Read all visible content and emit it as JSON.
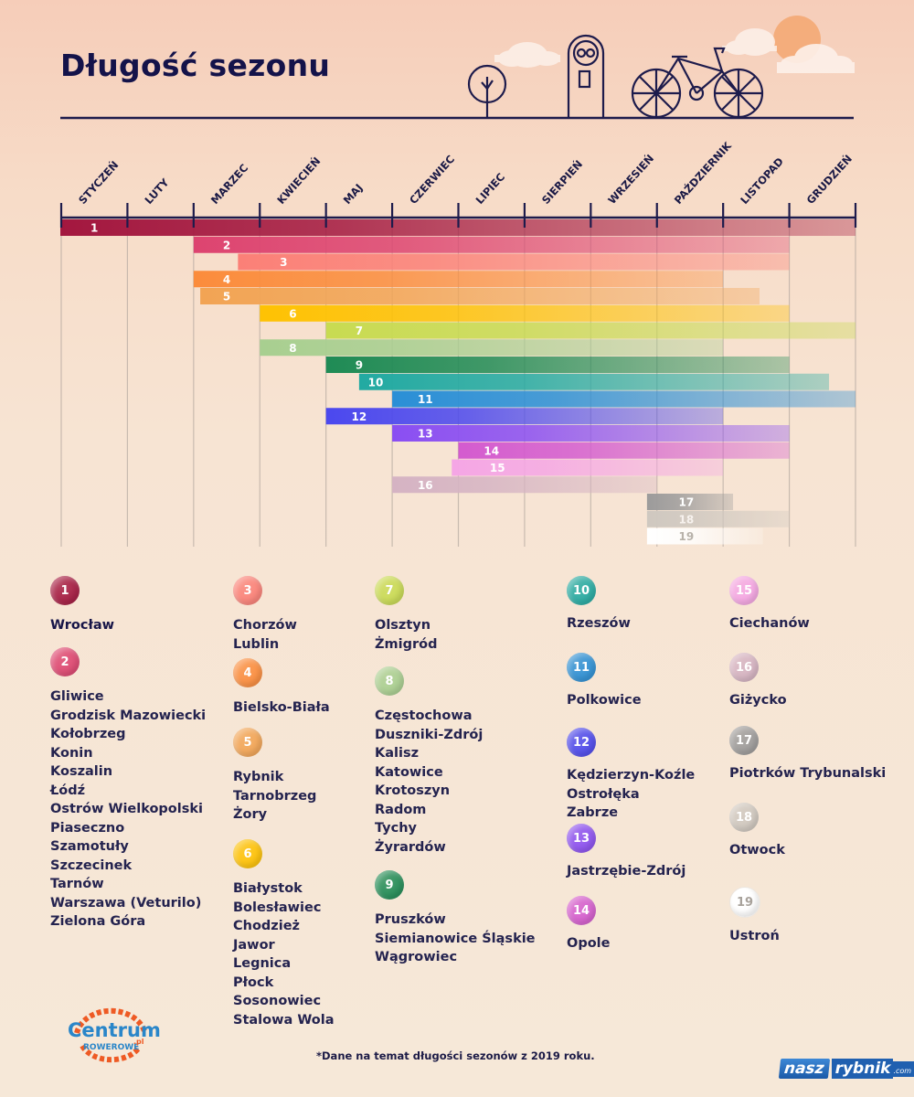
{
  "header": {
    "title": "Długość sezonu"
  },
  "chart_data": {
    "type": "gantt",
    "title": "Długość sezonu",
    "xlabel": "",
    "ylabel": "",
    "x_categories": [
      "STYCZEŃ",
      "LUTY",
      "MARZEC",
      "KWIECIEŃ",
      "MAJ",
      "CZERWIEC",
      "LIPIEC",
      "SIERPIEŃ",
      "WRZESIEŃ",
      "PAŹDZIERNIK",
      "LISTOPAD",
      "GRUDZIEŃ"
    ],
    "x_range_months": [
      0,
      12
    ],
    "units": "months from start of January",
    "series": [
      {
        "id": "1",
        "start": 0,
        "end": 12,
        "color": "#a3173f"
      },
      {
        "id": "2",
        "start": 2,
        "end": 11,
        "color": "#dd4470"
      },
      {
        "id": "3",
        "start": 2.67,
        "end": 11,
        "color": "#fb8077"
      },
      {
        "id": "4",
        "start": 2,
        "end": 10,
        "color": "#fb8c3c"
      },
      {
        "id": "5",
        "start": 2.1,
        "end": 10.55,
        "color": "#f2a454"
      },
      {
        "id": "6",
        "start": 3,
        "end": 11,
        "color": "#fec203"
      },
      {
        "id": "7",
        "start": 4,
        "end": 12,
        "color": "#c8db51"
      },
      {
        "id": "8",
        "start": 3,
        "end": 10,
        "color": "#a8cf90"
      },
      {
        "id": "9",
        "start": 4,
        "end": 11,
        "color": "#1f8b55"
      },
      {
        "id": "10",
        "start": 4.5,
        "end": 11.6,
        "color": "#22aaa2"
      },
      {
        "id": "11",
        "start": 5,
        "end": 12,
        "color": "#2a8fd6"
      },
      {
        "id": "12",
        "start": 4,
        "end": 10,
        "color": "#4b48ee"
      },
      {
        "id": "13",
        "start": 5,
        "end": 11,
        "color": "#8a4ef2"
      },
      {
        "id": "14",
        "start": 6,
        "end": 11,
        "color": "#d45bcf"
      },
      {
        "id": "15",
        "start": 5.9,
        "end": 10,
        "color": "#f5a6e5"
      },
      {
        "id": "16",
        "start": 5,
        "end": 9,
        "color": "#d5b3c3"
      },
      {
        "id": "17",
        "start": 8.85,
        "end": 10.15,
        "color": "#9c9b9b"
      },
      {
        "id": "18",
        "start": 8.85,
        "end": 11,
        "color": "#cfc8c0"
      },
      {
        "id": "19",
        "start": 8.85,
        "end": 10.6,
        "color": "#ffffff"
      }
    ],
    "grid": true,
    "legend": "bottom"
  },
  "legend": {
    "columns": [
      [
        {
          "id": "1",
          "color": "#a3173f",
          "cities": [
            "Wrocław"
          ],
          "strong": true
        },
        {
          "id": "2",
          "color": "#dd4470",
          "cities": [
            "Gliwice",
            "Grodzisk Mazowiecki",
            "Kołobrzeg",
            "Konin",
            "Koszalin",
            "Łódź",
            "Ostrów Wielkopolski",
            "Piaseczno",
            "Szamotuły",
            "Szczecinek",
            "Tarnów",
            "Warszawa (Veturilo)",
            "Zielona Góra"
          ]
        }
      ],
      [
        {
          "id": "3",
          "color": "#fb8077",
          "cities": [
            "Chorzów",
            "Lublin"
          ]
        },
        {
          "id": "4",
          "color": "#fb8c3c",
          "cities": [
            "Bielsko-Biała"
          ]
        },
        {
          "id": "5",
          "color": "#f2a454",
          "cities": [
            "Rybnik",
            "Tarnobrzeg",
            "Żory"
          ]
        },
        {
          "id": "6",
          "color": "#fec203",
          "cities": [
            "Białystok",
            "Bolesławiec",
            "Chodzież",
            "Jawor",
            "Legnica",
            "Płock",
            "Sosonowiec",
            "Stalowa Wola"
          ]
        }
      ],
      [
        {
          "id": "7",
          "color": "#c8db51",
          "cities": [
            "Olsztyn",
            "Żmigród"
          ]
        },
        {
          "id": "8",
          "color": "#a8cf90",
          "cities": [
            "Częstochowa",
            "Duszniki-Zdrój",
            "Kalisz",
            "Katowice",
            "Krotoszyn",
            "Radom",
            "Tychy",
            "Żyrardów"
          ]
        },
        {
          "id": "9",
          "color": "#1f8b55",
          "cities": [
            "Pruszków",
            "Siemianowice Śląskie",
            "Wągrowiec"
          ]
        }
      ],
      [
        {
          "id": "10",
          "color": "#22aaa2",
          "cities": [
            "Rzeszów"
          ]
        },
        {
          "id": "11",
          "color": "#2a8fd6",
          "cities": [
            "Polkowice"
          ]
        },
        {
          "id": "12",
          "color": "#4b48ee",
          "cities": [
            "Kędzierzyn-Koźle",
            "Ostrołęka",
            "Zabrze"
          ]
        },
        {
          "id": "13",
          "color": "#8a4ef2",
          "cities": [
            "Jastrzębie-Zdrój"
          ]
        },
        {
          "id": "14",
          "color": "#d45bcf",
          "cities": [
            "Opole"
          ]
        }
      ],
      [
        {
          "id": "15",
          "color": "#f5a6e5",
          "cities": [
            "Ciechanów"
          ]
        },
        {
          "id": "16",
          "color": "#d5b3c3",
          "cities": [
            "Giżycko"
          ]
        },
        {
          "id": "17",
          "color": "#9c9b9b",
          "cities": [
            "Piotrków Trybunalski"
          ]
        },
        {
          "id": "18",
          "color": "#cfc8c0",
          "cities": [
            "Otwock"
          ]
        },
        {
          "id": "19",
          "color": "#ffffff",
          "cities": [
            "Ustroń"
          ]
        }
      ]
    ]
  },
  "footer": {
    "note": "*Dane na temat długości sezonów z 2019 roku.",
    "logo_left_line1": "Centrum",
    "logo_left_line2": "ROWEROWE",
    "logo_left_suffix": ".pl",
    "logo_right_part1": "nasz",
    "logo_right_part2": "rybnik",
    "logo_right_suffix": ".com"
  },
  "colors": {
    "ink": "#1b1a46",
    "background": "#f6e8d8"
  }
}
